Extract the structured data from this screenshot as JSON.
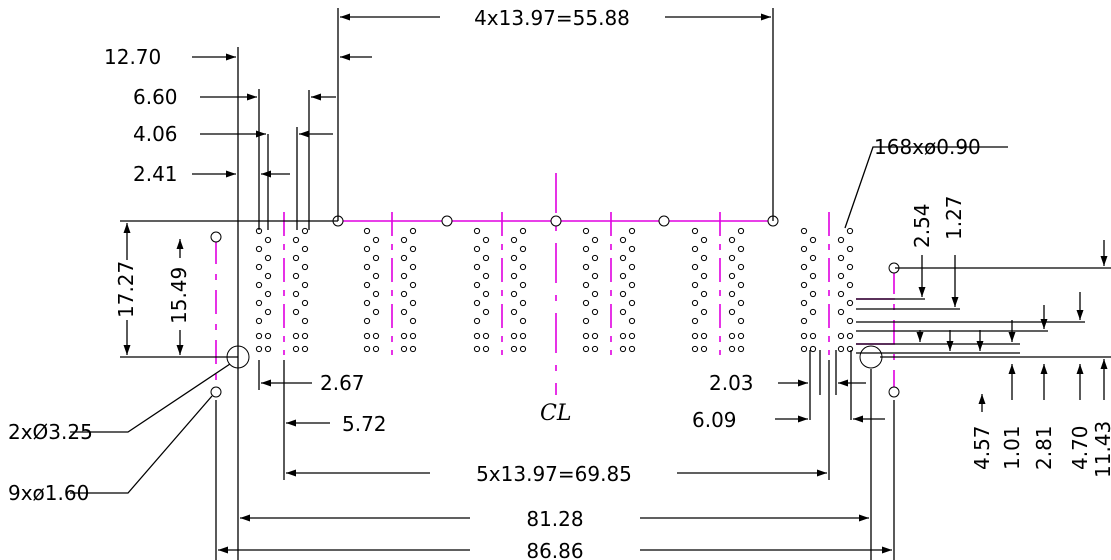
{
  "labels": {
    "top_pitch": "4x13.97=55.88",
    "d_12_70": "12.70",
    "d_6_60": "6.60",
    "d_4_06": "4.06",
    "d_2_41": "2.41",
    "d_17_27": "17.27",
    "d_15_49": "15.49",
    "holes_168": "168xø0.90",
    "d_2_54": "2.54",
    "d_1_27": "1.27",
    "d_2_67": "2.67",
    "d_5_72": "5.72",
    "d_2_03": "2.03",
    "d_6_09": "6.09",
    "holes_2": "2xØ3.25",
    "holes_9": "9xø1.60",
    "bottom_pitch": "5x13.97=69.85",
    "d_81_28": "81.28",
    "d_86_86": "86.86",
    "d_4_57": "4.57",
    "d_1_01": "1.01",
    "d_2_81": "2.81",
    "d_4_70": "4.70",
    "d_11_43": "11.43",
    "centerline": "CL"
  },
  "colors": {
    "line": "#000000",
    "centerline": "#e000e0"
  }
}
